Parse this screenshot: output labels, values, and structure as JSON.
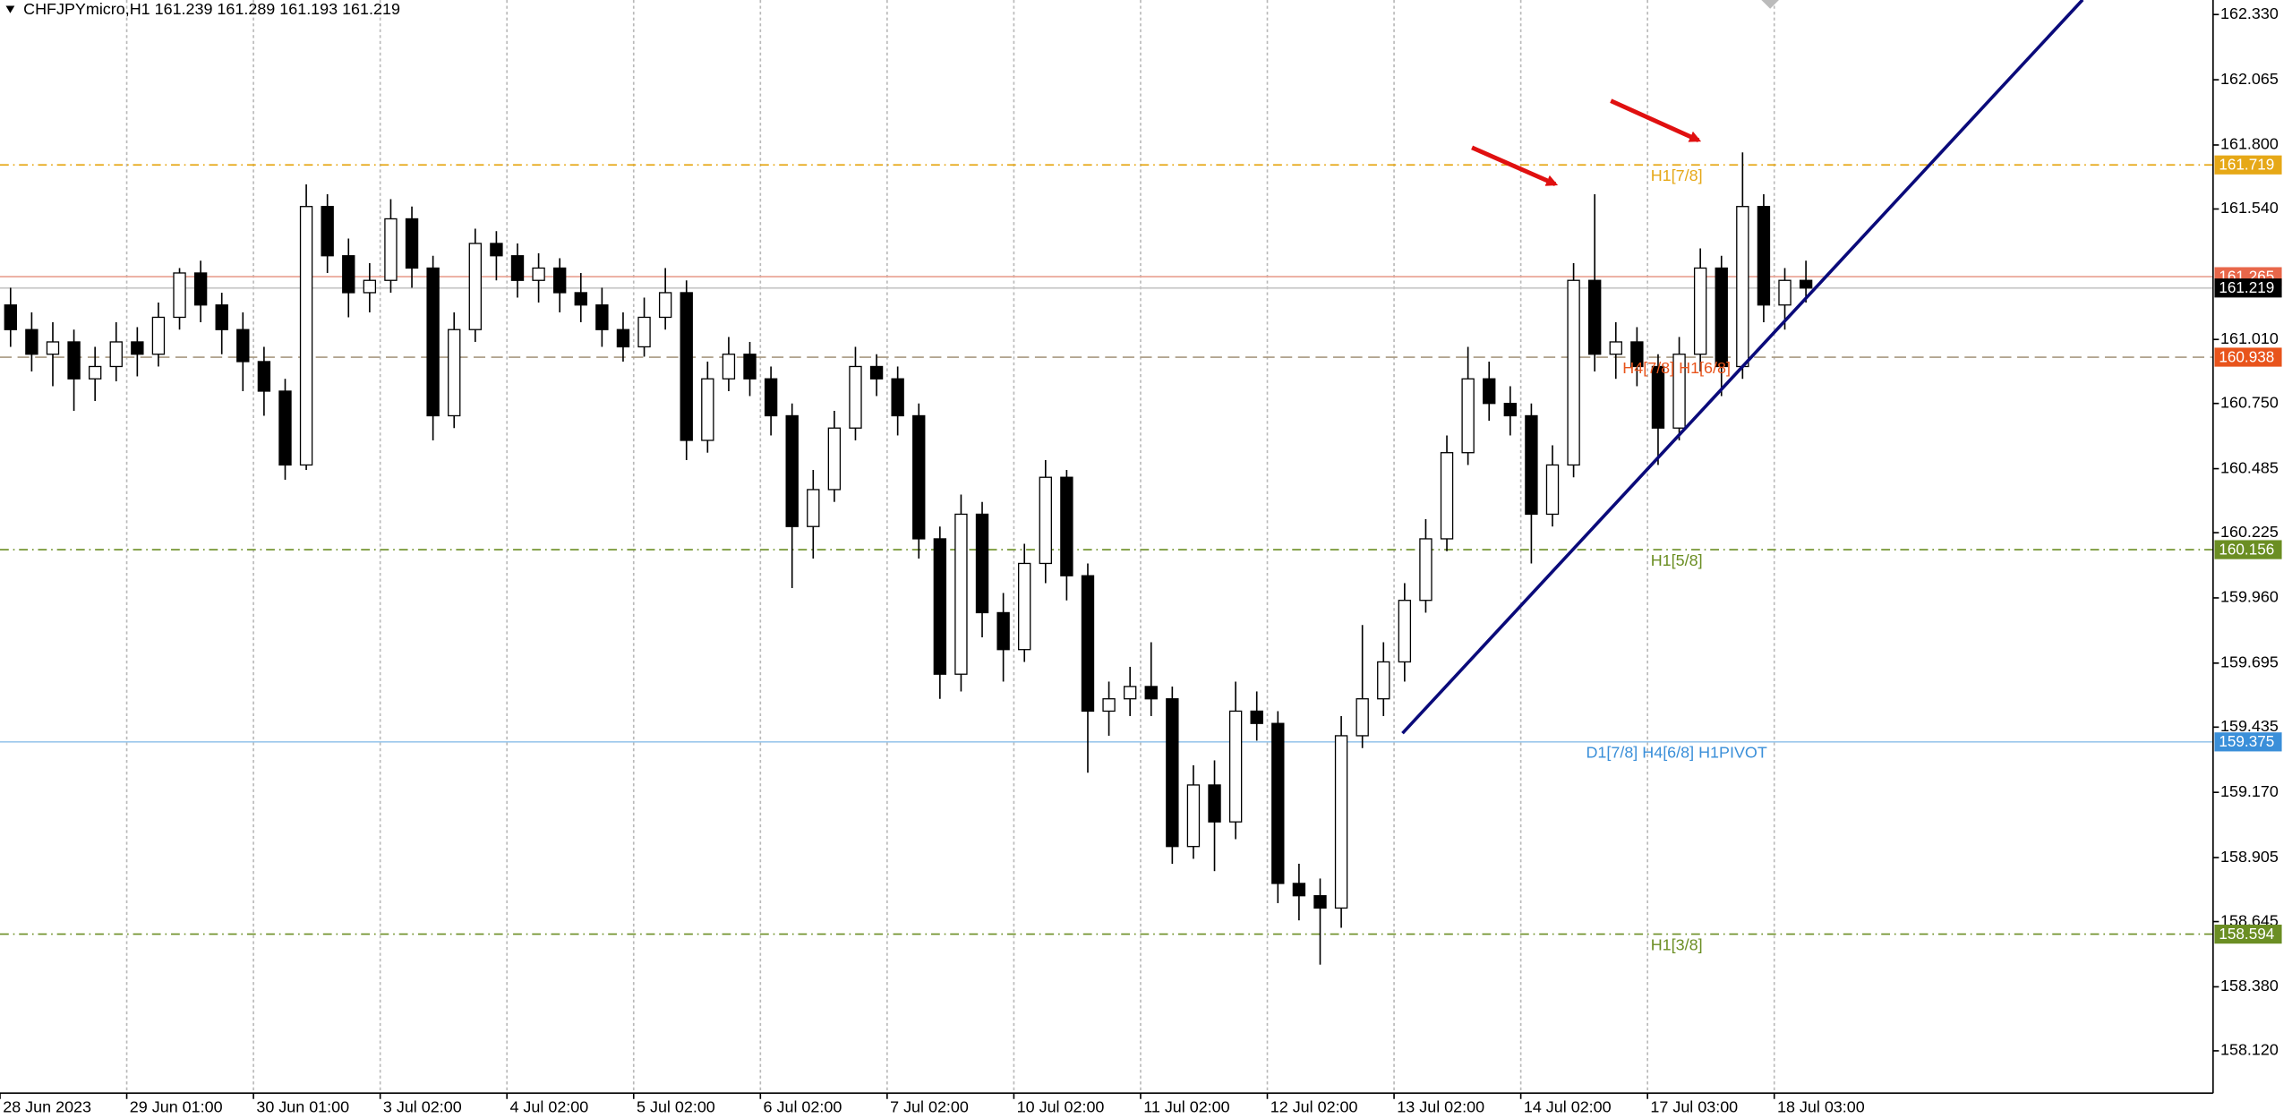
{
  "chart_data": {
    "type": "candlestick",
    "title": "CHFJPYmicro,H1  161.239 161.289 161.193 161.219",
    "categories": [
      "28 Jun 2023",
      null,
      null,
      null,
      null,
      null,
      "29 Jun 01:00",
      null,
      null,
      null,
      null,
      null,
      "30 Jun 01:00",
      null,
      null,
      null,
      null,
      null,
      "3 Jul 02:00",
      null,
      null,
      null,
      null,
      null,
      "4 Jul 02:00",
      null,
      null,
      null,
      null,
      null,
      "5 Jul 02:00",
      null,
      null,
      null,
      null,
      null,
      "6 Jul 02:00",
      null,
      null,
      null,
      null,
      null,
      "7 Jul 02:00",
      null,
      null,
      null,
      null,
      null,
      "10 Jul 02:00",
      null,
      null,
      null,
      null,
      null,
      "11 Jul 02:00",
      null,
      null,
      null,
      null,
      null,
      "12 Jul 02:00",
      null,
      null,
      null,
      null,
      null,
      "13 Jul 02:00",
      null,
      null,
      null,
      null,
      null,
      "14 Jul 02:00",
      null,
      null,
      null,
      null,
      null,
      "17 Jul 03:00",
      null,
      null,
      null,
      null,
      null,
      "18 Jul 03:00",
      null
    ],
    "open": [
      161.15,
      161.05,
      160.95,
      161.0,
      160.85,
      160.9,
      161.0,
      160.95,
      161.1,
      161.28,
      161.15,
      161.05,
      160.92,
      160.8,
      160.5,
      161.55,
      161.35,
      161.2,
      161.25,
      161.5,
      161.3,
      160.7,
      161.05,
      161.4,
      161.35,
      161.25,
      161.3,
      161.2,
      161.15,
      161.05,
      160.98,
      161.1,
      161.2,
      160.6,
      160.85,
      160.95,
      160.85,
      160.7,
      160.25,
      160.4,
      160.65,
      160.9,
      160.85,
      160.7,
      160.2,
      159.65,
      160.3,
      159.9,
      159.75,
      160.1,
      160.45,
      160.05,
      159.5,
      159.55,
      159.6,
      159.55,
      158.95,
      159.2,
      159.05,
      159.5,
      159.45,
      158.8,
      158.75,
      158.7,
      159.4,
      159.55,
      159.7,
      159.95,
      160.2,
      160.55,
      160.85,
      160.75,
      160.7,
      160.3,
      160.5,
      161.25,
      160.95,
      161.0,
      160.9,
      160.65,
      160.95,
      161.3,
      160.9,
      161.55,
      161.15,
      161.25
    ],
    "high": [
      161.22,
      161.12,
      161.08,
      161.05,
      160.98,
      161.08,
      161.06,
      161.16,
      161.3,
      161.33,
      161.2,
      161.12,
      160.98,
      160.85,
      161.64,
      161.6,
      161.42,
      161.32,
      161.58,
      161.55,
      161.35,
      161.12,
      161.46,
      161.45,
      161.4,
      161.36,
      161.34,
      161.28,
      161.22,
      161.12,
      161.18,
      161.3,
      161.25,
      160.92,
      161.02,
      161.0,
      160.9,
      160.75,
      160.48,
      160.72,
      160.98,
      160.95,
      160.9,
      160.75,
      160.25,
      160.38,
      160.35,
      159.98,
      160.18,
      160.52,
      160.48,
      160.1,
      159.62,
      159.68,
      159.78,
      159.6,
      159.28,
      159.3,
      159.62,
      159.58,
      159.5,
      158.88,
      158.82,
      159.48,
      159.85,
      159.78,
      160.02,
      160.28,
      160.62,
      160.98,
      160.92,
      160.82,
      160.75,
      160.58,
      161.32,
      161.6,
      161.08,
      161.06,
      160.95,
      161.02,
      161.38,
      161.35,
      161.77,
      161.6,
      161.3,
      161.33
    ],
    "low": [
      160.98,
      160.88,
      160.82,
      160.72,
      160.76,
      160.84,
      160.86,
      160.9,
      161.05,
      161.08,
      160.95,
      160.8,
      160.7,
      160.44,
      160.48,
      161.28,
      161.1,
      161.12,
      161.2,
      161.22,
      160.6,
      160.65,
      161.0,
      161.25,
      161.18,
      161.16,
      161.12,
      161.08,
      160.98,
      160.92,
      160.94,
      161.05,
      160.52,
      160.55,
      160.8,
      160.78,
      160.62,
      160.0,
      160.12,
      160.35,
      160.6,
      160.78,
      160.62,
      160.12,
      159.55,
      159.58,
      159.8,
      159.62,
      159.7,
      160.02,
      159.95,
      159.25,
      159.4,
      159.48,
      159.48,
      158.88,
      158.9,
      158.85,
      158.98,
      159.38,
      158.72,
      158.65,
      158.47,
      158.62,
      159.35,
      159.48,
      159.62,
      159.9,
      160.15,
      160.5,
      160.68,
      160.62,
      160.1,
      160.25,
      160.45,
      160.88,
      160.85,
      160.82,
      160.5,
      160.6,
      160.88,
      160.78,
      160.85,
      161.08,
      161.05,
      161.16
    ],
    "close": [
      161.05,
      160.95,
      161.0,
      160.85,
      160.9,
      161.0,
      160.95,
      161.1,
      161.28,
      161.15,
      161.05,
      160.92,
      160.8,
      160.5,
      161.55,
      161.35,
      161.2,
      161.25,
      161.5,
      161.3,
      160.7,
      161.05,
      161.4,
      161.35,
      161.25,
      161.3,
      161.2,
      161.15,
      161.05,
      160.98,
      161.1,
      161.2,
      160.6,
      160.85,
      160.95,
      160.85,
      160.7,
      160.25,
      160.4,
      160.65,
      160.9,
      160.85,
      160.7,
      160.2,
      159.65,
      160.3,
      159.9,
      159.75,
      160.1,
      160.45,
      160.05,
      159.5,
      159.55,
      159.6,
      159.55,
      158.95,
      159.2,
      159.05,
      159.5,
      159.45,
      158.8,
      158.75,
      158.7,
      159.4,
      159.55,
      159.7,
      159.95,
      160.2,
      160.55,
      160.85,
      160.75,
      160.7,
      160.3,
      160.5,
      161.25,
      160.95,
      161.0,
      160.9,
      160.65,
      160.95,
      161.3,
      160.9,
      161.55,
      161.15,
      161.25,
      161.219
    ],
    "ylim": [
      157.948,
      162.389
    ],
    "yticks": [
      {
        "value": 162.33,
        "label": "162.330"
      },
      {
        "value": 162.065,
        "label": "162.065"
      },
      {
        "value": 161.8,
        "label": "161.800"
      },
      {
        "value": 161.54,
        "label": "161.540"
      },
      {
        "value": 161.01,
        "label": "161.010"
      },
      {
        "value": 160.75,
        "label": "160.750"
      },
      {
        "value": 160.485,
        "label": "160.485"
      },
      {
        "value": 160.225,
        "label": "160.225"
      },
      {
        "value": 159.96,
        "label": "159.960"
      },
      {
        "value": 159.695,
        "label": "159.695"
      },
      {
        "value": 159.435,
        "label": "159.435"
      },
      {
        "value": 159.17,
        "label": "159.170"
      },
      {
        "value": 158.905,
        "label": "158.905"
      },
      {
        "value": 158.645,
        "label": "158.645"
      },
      {
        "value": 158.38,
        "label": "158.380"
      },
      {
        "value": 158.12,
        "label": "158.120"
      }
    ],
    "levels": [
      {
        "value": 161.719,
        "label": "161.719",
        "name": "H1[7/8]",
        "color": "#e6a817",
        "style": "dashdot"
      },
      {
        "value": 161.265,
        "label": "161.265",
        "color": "#e8674a",
        "line_color": "#e8a090",
        "style": "solid"
      },
      {
        "value": 161.219,
        "label": "161.219",
        "color": "#000000",
        "line_color": "#c8c8c8",
        "style": "solid"
      },
      {
        "value": 160.938,
        "label": "160.938",
        "name": "H4[7/8] H1[6/8]",
        "color": "#e8541c",
        "line_color": "#a89880",
        "style": "dashed"
      },
      {
        "value": 160.156,
        "label": "160.156",
        "name": "H1[5/8]",
        "color": "#6b8e23",
        "style": "dashdot"
      },
      {
        "value": 159.375,
        "label": "159.375",
        "name": "D1[7/8] H4[6/8] H1PIVOT",
        "color": "#3a8fd9",
        "line_color": "#9cc8ec",
        "style": "solid"
      },
      {
        "value": 158.594,
        "label": "158.594",
        "name": "H1[3/8]",
        "color": "#6b8e23",
        "style": "dashdot"
      }
    ],
    "trendline": {
      "x": [
        65.9,
        98.1
      ],
      "y": [
        159.41,
        162.39
      ],
      "color": "#0a0a7a"
    },
    "up_color": "#ffffff",
    "down_color": "#000000",
    "grid": true
  }
}
